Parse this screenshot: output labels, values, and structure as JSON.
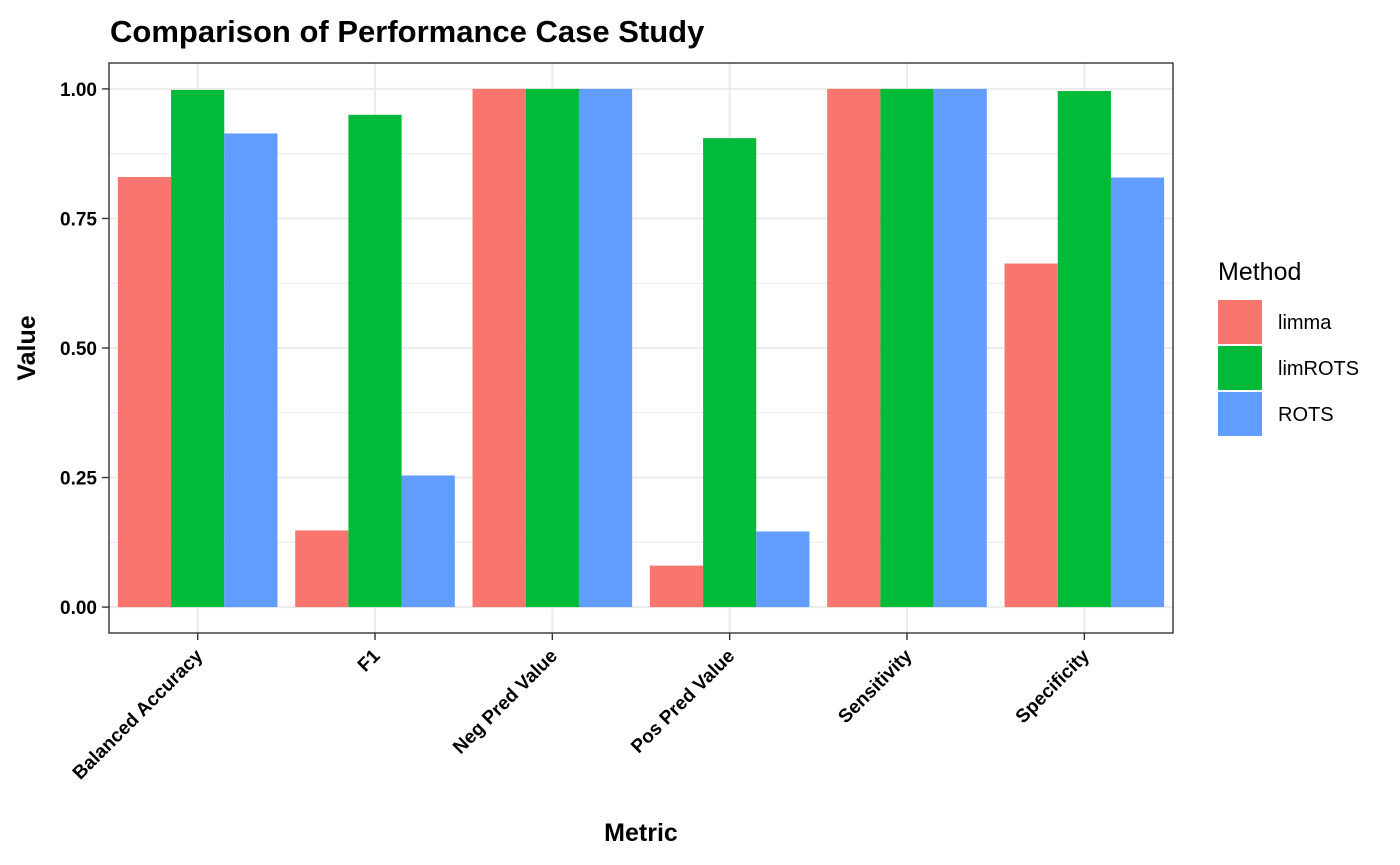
{
  "chart_data": {
    "type": "bar",
    "title": "Comparison of Performance Case Study",
    "xlabel": "Metric",
    "ylabel": "Value",
    "categories": [
      "Balanced Accuracy",
      "F1",
      "Neg Pred Value",
      "Pos Pred Value",
      "Sensitivity",
      "Specificity"
    ],
    "series": [
      {
        "name": "limma",
        "color": "#F8766D",
        "values": [
          0.83,
          0.148,
          1.0,
          0.08,
          1.0,
          0.663
        ]
      },
      {
        "name": "limROTS",
        "color": "#00BA38",
        "values": [
          0.998,
          0.95,
          1.0,
          0.905,
          1.0,
          0.996
        ]
      },
      {
        "name": "ROTS",
        "color": "#619CFF",
        "values": [
          0.914,
          0.254,
          1.0,
          0.146,
          1.0,
          0.829
        ]
      }
    ],
    "ylim": [
      -0.05,
      1.05
    ],
    "yticks": [
      0.0,
      0.25,
      0.5,
      0.75,
      1.0
    ],
    "ytick_labels": [
      "0.00",
      "0.25",
      "0.50",
      "0.75",
      "1.00"
    ],
    "grid": true,
    "legend": {
      "title": "Method",
      "position": "right"
    }
  }
}
